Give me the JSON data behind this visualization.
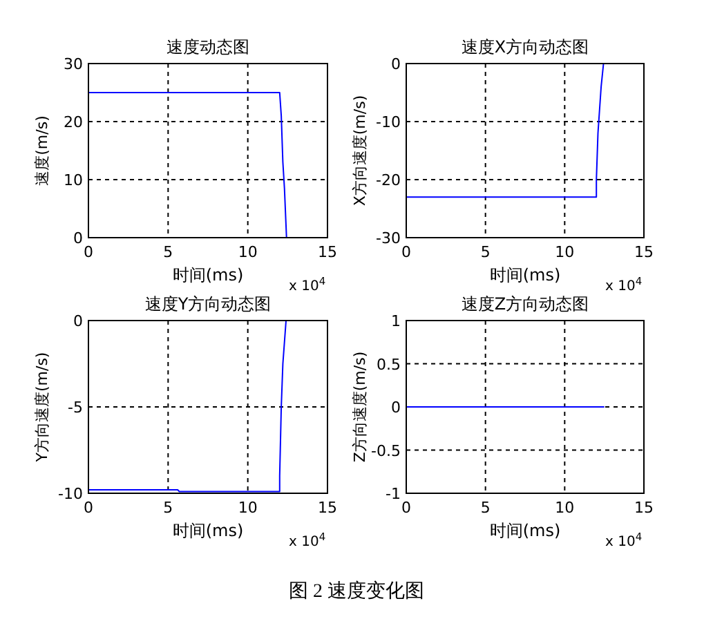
{
  "chart_data": [
    {
      "type": "line",
      "title": "速度动态图",
      "xlabel": "时间(ms)",
      "ylabel": "速度(m/s)",
      "xlim": [
        0,
        15
      ],
      "xticks": [
        0,
        5,
        10,
        15
      ],
      "ylim": [
        0,
        30
      ],
      "yticks": [
        0,
        10,
        20,
        30
      ],
      "grid": true,
      "annotations": [
        "x 10$^{4}$"
      ],
      "series": [
        {
          "color": "#0000ff",
          "x": [
            0,
            12,
            12.1,
            12.2,
            12.3,
            12.43
          ],
          "values": [
            25,
            25,
            21,
            13,
            8.5,
            0
          ]
        }
      ]
    },
    {
      "type": "line",
      "title": "速度X方向动态图",
      "xlabel": "时间(ms)",
      "ylabel": "X方向速度(m/s)",
      "xlim": [
        0,
        15
      ],
      "xticks": [
        0,
        5,
        10,
        15
      ],
      "ylim": [
        -30,
        0
      ],
      "yticks": [
        -30,
        -20,
        -10,
        0
      ],
      "grid": true,
      "annotations": [
        "x 10$^{4}$"
      ],
      "series": [
        {
          "color": "#0000ff",
          "x": [
            0,
            12,
            12,
            12.1,
            12.3,
            12.45
          ],
          "values": [
            -23,
            -23,
            -20,
            -12,
            -4,
            0
          ]
        }
      ]
    },
    {
      "type": "line",
      "title": "速度Y方向动态图",
      "xlabel": "时间(ms)",
      "ylabel": "Y方向速度(m/s)",
      "xlim": [
        0,
        15
      ],
      "xticks": [
        0,
        5,
        10,
        15
      ],
      "ylim": [
        -10,
        0
      ],
      "yticks": [
        -10,
        -5,
        0
      ],
      "grid": true,
      "annotations": [
        "x 10$^{4}$"
      ],
      "series": [
        {
          "color": "#0000ff",
          "x": [
            0,
            5.6,
            5.7,
            12,
            12,
            12.1,
            12.2,
            12.4
          ],
          "values": [
            -9.8,
            -9.8,
            -9.9,
            -9.9,
            -9,
            -5,
            -2.5,
            0
          ]
        }
      ]
    },
    {
      "type": "line",
      "title": "速度Z方向动态图",
      "xlabel": "时间(ms)",
      "ylabel": "Z方向速度(m/s)",
      "xlim": [
        0,
        15
      ],
      "xticks": [
        0,
        5,
        10,
        15
      ],
      "ylim": [
        -1,
        1
      ],
      "yticks": [
        -1,
        -0.5,
        0,
        0.5,
        1
      ],
      "grid": true,
      "annotations": [
        "x 10$^{4}$",
        "图 2 速度变化图"
      ],
      "series": [
        {
          "color": "#0000ff",
          "x": [
            0,
            12.5
          ],
          "values": [
            0,
            0
          ]
        }
      ]
    }
  ]
}
